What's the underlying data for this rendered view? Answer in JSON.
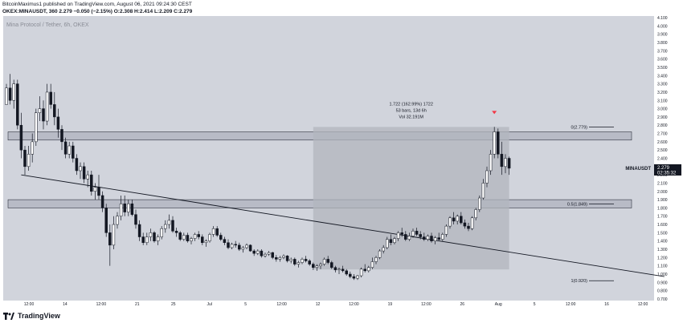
{
  "header": {
    "published_line": "BitcoinMaximus1 published on TradingView.com, August 06, 2021 09:24:30 CEST",
    "ticker_line": "OKEX:MINAUSDT, 360  2.279  −0.050 (−2.15%)  O:2.308  H:2.414  L:2.209  C:2.279",
    "watermark": "Mina Protocol / Tether, 6h, OKEX"
  },
  "footer": {
    "brand": "TradingView"
  },
  "colors": {
    "plot_bg": "#d1d4dc",
    "candle": "#ffffff",
    "wick": "#131722",
    "zone": "#b8bbc6",
    "measure_box": "#b2b5be",
    "arrow": "#f23645",
    "price_label_bg": "#131722"
  },
  "annotations": {
    "measure_line1": "1.722 (162.99%) 1722",
    "measure_line2": "53 bars, 13d 6h",
    "measure_line3": "Vol 32.191M",
    "price_tag_symbol": "MINAUSDT",
    "price_tag_value": "2.279",
    "price_tag_countdown": "02:35:32"
  },
  "chart_data": {
    "type": "candlestick",
    "symbol": "OKEX:MINAUSDT",
    "timeframe": "6h",
    "x_tick_labels": [
      "12:00",
      "14",
      "12:00",
      "21",
      "25",
      "Jul",
      "5",
      "12:00",
      "12",
      "12:00",
      "19",
      "12:00",
      "26",
      "Aug",
      "5",
      "12:00",
      "16",
      "12:00"
    ],
    "y_tick_labels": [
      "4.100",
      "4.000",
      "3.900",
      "3.800",
      "3.700",
      "3.600",
      "3.500",
      "3.400",
      "3.300",
      "3.200",
      "3.100",
      "3.000",
      "2.900",
      "2.800",
      "2.700",
      "2.600",
      "2.500",
      "2.400",
      "2.300",
      "2.200",
      "2.100",
      "2.000",
      "1.900",
      "1.800",
      "1.700",
      "1.600",
      "1.500",
      "1.400",
      "1.300",
      "1.200",
      "1.100",
      "1.000",
      "0.900",
      "0.800",
      "0.700"
    ],
    "ylim": [
      0.68,
      4.12
    ],
    "grid": false,
    "last_price": 2.279,
    "fib_levels": [
      {
        "label": "0(2.779)",
        "value": 2.779
      },
      {
        "label": "0.5(1.849)",
        "value": 1.849
      },
      {
        "label": "1(0.920)",
        "value": 0.92
      }
    ],
    "resistance_zones": [
      [
        2.62,
        2.72
      ],
      [
        1.8,
        1.9
      ]
    ],
    "measured_move": {
      "from": 1.056,
      "to": 2.779,
      "change": 1.722,
      "percent": 162.99,
      "bars": 53,
      "duration": "13d 6h",
      "volume": "32.191M"
    },
    "descending_trendline": [
      {
        "bar": 4,
        "price": 2.2
      },
      {
        "bar": 178,
        "price": 0.97
      }
    ],
    "candles": [
      [
        3.05,
        3.3,
        3.05,
        3.25
      ],
      [
        3.25,
        3.42,
        3.05,
        3.1
      ],
      [
        3.1,
        3.35,
        3.0,
        3.3
      ],
      [
        3.3,
        3.35,
        2.75,
        2.8
      ],
      [
        2.8,
        2.95,
        2.4,
        2.5
      ],
      [
        2.5,
        2.55,
        2.2,
        2.3
      ],
      [
        2.3,
        2.55,
        2.25,
        2.45
      ],
      [
        2.45,
        2.7,
        2.35,
        2.6
      ],
      [
        2.6,
        3.0,
        2.55,
        2.95
      ],
      [
        2.95,
        3.15,
        2.85,
        3.0
      ],
      [
        3.0,
        3.1,
        2.75,
        2.85
      ],
      [
        2.85,
        3.3,
        2.8,
        3.2
      ],
      [
        3.2,
        3.3,
        3.0,
        3.05
      ],
      [
        3.05,
        3.2,
        2.8,
        2.9
      ],
      [
        2.9,
        3.0,
        2.65,
        2.75
      ],
      [
        2.75,
        2.8,
        2.5,
        2.6
      ],
      [
        2.6,
        2.65,
        2.4,
        2.45
      ],
      [
        2.45,
        2.6,
        2.4,
        2.55
      ],
      [
        2.55,
        2.6,
        2.35,
        2.4
      ],
      [
        2.4,
        2.45,
        2.2,
        2.25
      ],
      [
        2.25,
        2.35,
        2.15,
        2.3
      ],
      [
        2.3,
        2.35,
        2.1,
        2.15
      ],
      [
        2.15,
        2.25,
        2.05,
        2.2
      ],
      [
        2.2,
        2.25,
        1.95,
        2.0
      ],
      [
        2.0,
        2.1,
        1.9,
        2.05
      ],
      [
        2.05,
        2.2,
        1.9,
        1.95
      ],
      [
        1.95,
        2.0,
        1.75,
        1.8
      ],
      [
        1.8,
        1.85,
        1.45,
        1.5
      ],
      [
        1.5,
        1.6,
        1.1,
        1.35
      ],
      [
        1.35,
        1.7,
        1.3,
        1.6
      ],
      [
        1.6,
        1.75,
        1.55,
        1.7
      ],
      [
        1.7,
        1.95,
        1.65,
        1.85
      ],
      [
        1.85,
        1.95,
        1.7,
        1.75
      ],
      [
        1.75,
        1.9,
        1.7,
        1.85
      ],
      [
        1.85,
        1.9,
        1.7,
        1.72
      ],
      [
        1.72,
        1.78,
        1.55,
        1.6
      ],
      [
        1.6,
        1.65,
        1.4,
        1.45
      ],
      [
        1.45,
        1.5,
        1.35,
        1.38
      ],
      [
        1.38,
        1.5,
        1.35,
        1.45
      ],
      [
        1.45,
        1.55,
        1.4,
        1.5
      ],
      [
        1.5,
        1.52,
        1.38,
        1.4
      ],
      [
        1.4,
        1.48,
        1.35,
        1.45
      ],
      [
        1.45,
        1.58,
        1.42,
        1.55
      ],
      [
        1.55,
        1.65,
        1.5,
        1.6
      ],
      [
        1.6,
        1.72,
        1.55,
        1.65
      ],
      [
        1.65,
        1.7,
        1.5,
        1.52
      ],
      [
        1.52,
        1.56,
        1.45,
        1.5
      ],
      [
        1.5,
        1.52,
        1.4,
        1.42
      ],
      [
        1.42,
        1.5,
        1.4,
        1.47
      ],
      [
        1.47,
        1.5,
        1.38,
        1.4
      ],
      [
        1.4,
        1.45,
        1.36,
        1.43
      ],
      [
        1.43,
        1.5,
        1.4,
        1.48
      ],
      [
        1.48,
        1.52,
        1.42,
        1.45
      ],
      [
        1.45,
        1.48,
        1.35,
        1.38
      ],
      [
        1.38,
        1.42,
        1.33,
        1.4
      ],
      [
        1.4,
        1.5,
        1.38,
        1.48
      ],
      [
        1.48,
        1.58,
        1.45,
        1.55
      ],
      [
        1.55,
        1.58,
        1.45,
        1.47
      ],
      [
        1.47,
        1.5,
        1.4,
        1.42
      ],
      [
        1.42,
        1.45,
        1.35,
        1.38
      ],
      [
        1.38,
        1.42,
        1.3,
        1.32
      ],
      [
        1.32,
        1.38,
        1.3,
        1.36
      ],
      [
        1.36,
        1.4,
        1.32,
        1.35
      ],
      [
        1.35,
        1.38,
        1.28,
        1.3
      ],
      [
        1.3,
        1.34,
        1.26,
        1.32
      ],
      [
        1.32,
        1.37,
        1.3,
        1.35
      ],
      [
        1.35,
        1.36,
        1.27,
        1.28
      ],
      [
        1.28,
        1.3,
        1.22,
        1.25
      ],
      [
        1.25,
        1.3,
        1.23,
        1.28
      ],
      [
        1.28,
        1.3,
        1.2,
        1.22
      ],
      [
        1.22,
        1.26,
        1.2,
        1.24
      ],
      [
        1.24,
        1.28,
        1.22,
        1.26
      ],
      [
        1.26,
        1.27,
        1.18,
        1.2
      ],
      [
        1.2,
        1.23,
        1.15,
        1.18
      ],
      [
        1.18,
        1.22,
        1.15,
        1.2
      ],
      [
        1.2,
        1.24,
        1.18,
        1.22
      ],
      [
        1.22,
        1.23,
        1.14,
        1.16
      ],
      [
        1.16,
        1.2,
        1.13,
        1.18
      ],
      [
        1.18,
        1.2,
        1.1,
        1.12
      ],
      [
        1.12,
        1.16,
        1.08,
        1.14
      ],
      [
        1.14,
        1.2,
        1.12,
        1.18
      ],
      [
        1.18,
        1.22,
        1.14,
        1.16
      ],
      [
        1.16,
        1.18,
        1.1,
        1.12
      ],
      [
        1.12,
        1.14,
        1.05,
        1.08
      ],
      [
        1.08,
        1.12,
        1.04,
        1.1
      ],
      [
        1.1,
        1.14,
        1.06,
        1.12
      ],
      [
        1.12,
        1.2,
        1.1,
        1.18
      ],
      [
        1.18,
        1.22,
        1.12,
        1.14
      ],
      [
        1.14,
        1.16,
        1.06,
        1.08
      ],
      [
        1.08,
        1.1,
        1.02,
        1.05
      ],
      [
        1.05,
        1.08,
        1.0,
        1.06
      ],
      [
        1.06,
        1.1,
        1.02,
        1.04
      ],
      [
        1.04,
        1.06,
        0.98,
        1.0
      ],
      [
        1.0,
        1.03,
        0.95,
        0.97
      ],
      [
        0.97,
        1.0,
        0.93,
        0.95
      ],
      [
        0.95,
        0.99,
        0.93,
        0.98
      ],
      [
        0.98,
        1.08,
        0.96,
        1.06
      ],
      [
        1.06,
        1.12,
        1.02,
        1.04
      ],
      [
        1.04,
        1.1,
        1.02,
        1.08
      ],
      [
        1.08,
        1.2,
        1.06,
        1.15
      ],
      [
        1.15,
        1.22,
        1.12,
        1.2
      ],
      [
        1.2,
        1.3,
        1.18,
        1.28
      ],
      [
        1.28,
        1.35,
        1.25,
        1.32
      ],
      [
        1.32,
        1.45,
        1.3,
        1.42
      ],
      [
        1.42,
        1.48,
        1.35,
        1.38
      ],
      [
        1.38,
        1.45,
        1.36,
        1.43
      ],
      [
        1.43,
        1.52,
        1.4,
        1.5
      ],
      [
        1.5,
        1.56,
        1.45,
        1.48
      ],
      [
        1.48,
        1.52,
        1.4,
        1.42
      ],
      [
        1.42,
        1.5,
        1.4,
        1.46
      ],
      [
        1.46,
        1.55,
        1.44,
        1.52
      ],
      [
        1.52,
        1.56,
        1.46,
        1.48
      ],
      [
        1.48,
        1.52,
        1.42,
        1.45
      ],
      [
        1.45,
        1.5,
        1.4,
        1.42
      ],
      [
        1.42,
        1.48,
        1.4,
        1.46
      ],
      [
        1.46,
        1.5,
        1.38,
        1.4
      ],
      [
        1.4,
        1.46,
        1.36,
        1.44
      ],
      [
        1.44,
        1.5,
        1.4,
        1.42
      ],
      [
        1.42,
        1.5,
        1.4,
        1.48
      ],
      [
        1.48,
        1.6,
        1.45,
        1.58
      ],
      [
        1.58,
        1.7,
        1.55,
        1.68
      ],
      [
        1.68,
        1.75,
        1.6,
        1.64
      ],
      [
        1.64,
        1.72,
        1.6,
        1.7
      ],
      [
        1.7,
        1.75,
        1.6,
        1.62
      ],
      [
        1.62,
        1.66,
        1.55,
        1.58
      ],
      [
        1.58,
        1.62,
        1.52,
        1.55
      ],
      [
        1.55,
        1.7,
        1.53,
        1.68
      ],
      [
        1.68,
        1.8,
        1.65,
        1.78
      ],
      [
        1.78,
        1.95,
        1.75,
        1.92
      ],
      [
        1.92,
        2.15,
        1.9,
        2.1
      ],
      [
        2.1,
        2.3,
        2.05,
        2.25
      ],
      [
        2.25,
        2.5,
        2.2,
        2.45
      ],
      [
        2.45,
        2.78,
        2.4,
        2.72
      ],
      [
        2.72,
        2.76,
        2.4,
        2.45
      ],
      [
        2.45,
        2.6,
        2.2,
        2.3
      ],
      [
        2.3,
        2.45,
        2.22,
        2.4
      ],
      [
        2.4,
        2.42,
        2.2,
        2.28
      ]
    ]
  }
}
